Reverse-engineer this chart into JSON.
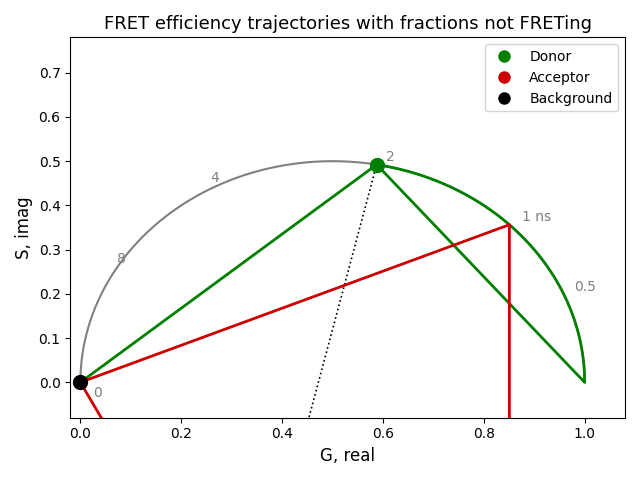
{
  "title": "FRET efficiency trajectories with fractions not FRETing",
  "xlabel": "G, real",
  "ylabel": "S, imag",
  "xlim": [
    -0.02,
    1.08
  ],
  "ylim": [
    -0.08,
    0.78
  ],
  "omega_hz": 0.06667,
  "tau_donor_ns": 2.0,
  "tau_acceptor_ns": 1.0,
  "background_point": [
    0.0,
    0.0
  ],
  "lifetime_labels": [
    {
      "tau": 0.5,
      "label": "0.5"
    },
    {
      "tau": 1.0,
      "label": "1 ns"
    },
    {
      "tau": 2.0,
      "label": "2"
    },
    {
      "tau": 4.0,
      "label": "4"
    },
    {
      "tau": 8.0,
      "label": "8"
    },
    {
      "tau": 0.0,
      "label": "0"
    }
  ],
  "donor_color": "#008000",
  "acceptor_color": "#cc0000",
  "background_color": "#000000",
  "semicircle_color": "#808080",
  "legend_labels": [
    "Donor",
    "Acceptor",
    "Background"
  ],
  "figsize": [
    6.4,
    4.8
  ],
  "dpi": 100
}
